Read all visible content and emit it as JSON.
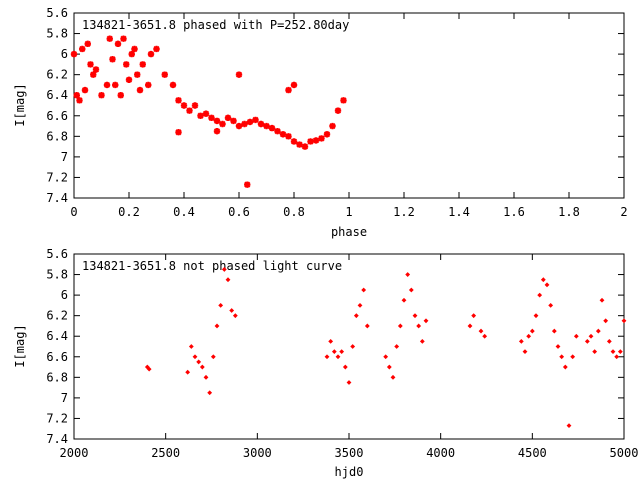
{
  "chart_data": [
    {
      "type": "scatter",
      "title": "134821-3651.8 phased with P=252.80day",
      "xlabel": "phase",
      "ylabel": "I[mag]",
      "xlim": [
        0,
        2
      ],
      "ylim": [
        5.6,
        7.4
      ],
      "y_inverted": true,
      "xticks": [
        "0",
        "0.2",
        "0.4",
        "0.6",
        "0.8",
        "1",
        "1.2",
        "1.4",
        "1.6",
        "1.8",
        "2"
      ],
      "yticks": [
        "5.6",
        "5.8",
        "6",
        "6.2",
        "6.4",
        "6.6",
        "6.8",
        "7",
        "7.2",
        "7.4"
      ],
      "marker": "star",
      "color": "#ff0000",
      "grid": false,
      "x": [
        0.0,
        0.01,
        0.02,
        0.03,
        0.04,
        0.05,
        0.06,
        0.07,
        0.08,
        0.1,
        0.12,
        0.13,
        0.14,
        0.15,
        0.16,
        0.17,
        0.18,
        0.19,
        0.2,
        0.21,
        0.22,
        0.23,
        0.24,
        0.25,
        0.27,
        0.28,
        0.3,
        0.33,
        0.36,
        0.38,
        0.4,
        0.42,
        0.44,
        0.46,
        0.48,
        0.5,
        0.52,
        0.54,
        0.56,
        0.58,
        0.6,
        0.62,
        0.64,
        0.66,
        0.68,
        0.7,
        0.72,
        0.74,
        0.76,
        0.78,
        0.8,
        0.82,
        0.84,
        0.86,
        0.88,
        0.9,
        0.92,
        0.94,
        0.96,
        0.98,
        0.38,
        0.63,
        0.78,
        0.8,
        0.6,
        0.52
      ],
      "y": [
        6.0,
        6.4,
        6.45,
        5.95,
        6.35,
        5.9,
        6.1,
        6.2,
        6.15,
        6.4,
        6.3,
        5.85,
        6.05,
        6.3,
        5.9,
        6.4,
        5.85,
        6.1,
        6.25,
        6.0,
        5.95,
        6.2,
        6.35,
        6.1,
        6.3,
        6.0,
        5.95,
        6.2,
        6.3,
        6.45,
        6.5,
        6.55,
        6.5,
        6.6,
        6.58,
        6.62,
        6.65,
        6.68,
        6.62,
        6.65,
        6.7,
        6.68,
        6.66,
        6.64,
        6.68,
        6.7,
        6.72,
        6.75,
        6.78,
        6.8,
        6.85,
        6.88,
        6.9,
        6.85,
        6.84,
        6.82,
        6.78,
        6.7,
        6.55,
        6.45,
        6.76,
        7.27,
        6.35,
        6.3,
        6.2,
        6.75
      ]
    },
    {
      "type": "scatter",
      "title": "134821-3651.8 not phased light curve",
      "xlabel": "hjd0",
      "ylabel": "I[mag]",
      "xlim": [
        2000,
        5000
      ],
      "ylim": [
        5.6,
        7.4
      ],
      "y_inverted": true,
      "xticks": [
        "2000",
        "2500",
        "3000",
        "3500",
        "4000",
        "4500",
        "5000"
      ],
      "yticks": [
        "5.6",
        "5.8",
        "6",
        "6.2",
        "6.4",
        "6.6",
        "6.8",
        "7",
        "7.2",
        "7.4"
      ],
      "marker": "diamond",
      "color": "#ff0000",
      "grid": false,
      "x": [
        2400,
        2410,
        2620,
        2640,
        2660,
        2680,
        2700,
        2720,
        2740,
        2760,
        2780,
        2800,
        2820,
        2840,
        2860,
        2880,
        3380,
        3400,
        3420,
        3440,
        3460,
        3480,
        3500,
        3520,
        3540,
        3560,
        3580,
        3600,
        3700,
        3720,
        3740,
        3760,
        3780,
        3800,
        3820,
        3840,
        3860,
        3880,
        3900,
        3920,
        4160,
        4180,
        4220,
        4240,
        4440,
        4460,
        4480,
        4500,
        4520,
        4540,
        4560,
        4580,
        4600,
        4620,
        4640,
        4660,
        4680,
        4700,
        4720,
        4740,
        4800,
        4820,
        4840,
        4860,
        4880,
        4900,
        4920,
        4940,
        4960,
        4980,
        5000
      ],
      "y": [
        6.7,
        6.72,
        6.75,
        6.5,
        6.6,
        6.65,
        6.7,
        6.8,
        6.95,
        6.6,
        6.3,
        6.1,
        5.75,
        5.85,
        6.15,
        6.2,
        6.6,
        6.45,
        6.55,
        6.6,
        6.55,
        6.7,
        6.85,
        6.5,
        6.2,
        6.1,
        5.95,
        6.3,
        6.6,
        6.7,
        6.8,
        6.5,
        6.3,
        6.05,
        5.8,
        5.95,
        6.2,
        6.3,
        6.45,
        6.25,
        6.3,
        6.2,
        6.35,
        6.4,
        6.45,
        6.55,
        6.4,
        6.35,
        6.2,
        6.0,
        5.85,
        5.9,
        6.1,
        6.35,
        6.5,
        6.6,
        6.7,
        7.27,
        6.6,
        6.4,
        6.45,
        6.4,
        6.55,
        6.35,
        6.05,
        6.25,
        6.45,
        6.55,
        6.6,
        6.55,
        6.25
      ]
    }
  ]
}
